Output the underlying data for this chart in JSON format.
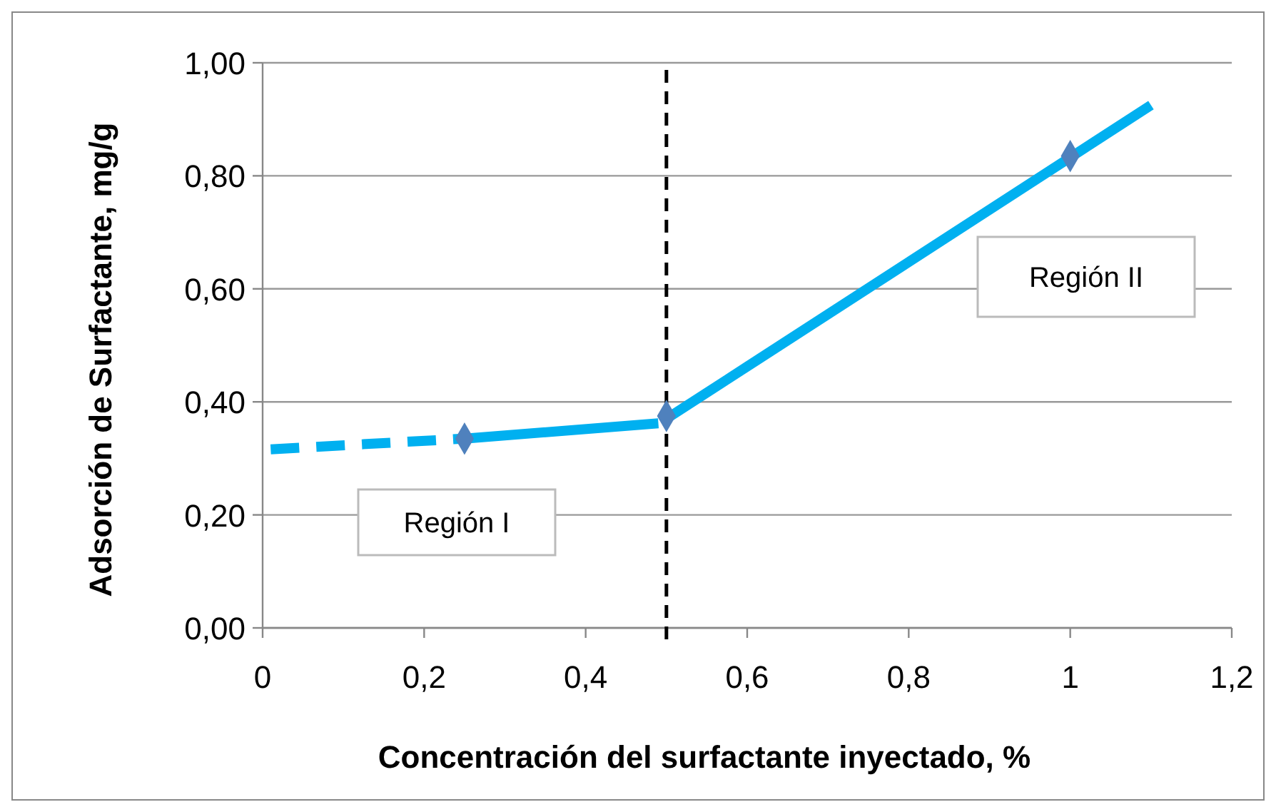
{
  "chart_data": {
    "type": "line",
    "xlabel": "Concentración del surfactante inyectado, %",
    "ylabel": "Adsorción de Surfactante, mg/g",
    "xlim": [
      0,
      1.2
    ],
    "ylim": [
      0,
      1
    ],
    "xticks": [
      0,
      {
        "value": 0.2,
        "label": "0,2"
      },
      {
        "value": 0.4,
        "label": "0,4"
      },
      {
        "value": 0.6,
        "label": "0,6"
      },
      {
        "value": 0.8,
        "label": "0,8"
      },
      1,
      {
        "value": 1.2,
        "label": "1,2"
      }
    ],
    "yticks": [
      {
        "value": 0,
        "label": "0,00"
      },
      {
        "value": 0.2,
        "label": "0,20"
      },
      {
        "value": 0.4,
        "label": "0,40"
      },
      {
        "value": 0.6,
        "label": "0,60"
      },
      {
        "value": 0.8,
        "label": "0,80"
      },
      {
        "value": 1,
        "label": "1,00"
      }
    ],
    "grid": "y",
    "series": [
      {
        "color": "#00b0f0",
        "line_style": "dashed",
        "x": [
          0.01,
          0.25
        ],
        "values": [
          0.316,
          0.335
        ]
      },
      {
        "color": "#00b0f0",
        "line_style": "solid",
        "x": [
          0.25,
          0.49
        ],
        "values": [
          0.335,
          0.362
        ]
      },
      {
        "color": "#00b0f0",
        "line_style": "solid",
        "x": [
          0.5,
          1.1
        ],
        "values": [
          0.37,
          0.925
        ]
      },
      {
        "type": "scatter",
        "color": "#4f81bd",
        "marker": "diamond",
        "x": [
          0.25,
          0.5,
          1
        ],
        "values": [
          0.335,
          0.375,
          0.835
        ]
      }
    ],
    "ref_lines": [
      {
        "axis": "x",
        "value": 0.5,
        "color": "#000000",
        "line_style": "dashed"
      }
    ],
    "annotations": [
      "Región I",
      "Región II"
    ]
  }
}
